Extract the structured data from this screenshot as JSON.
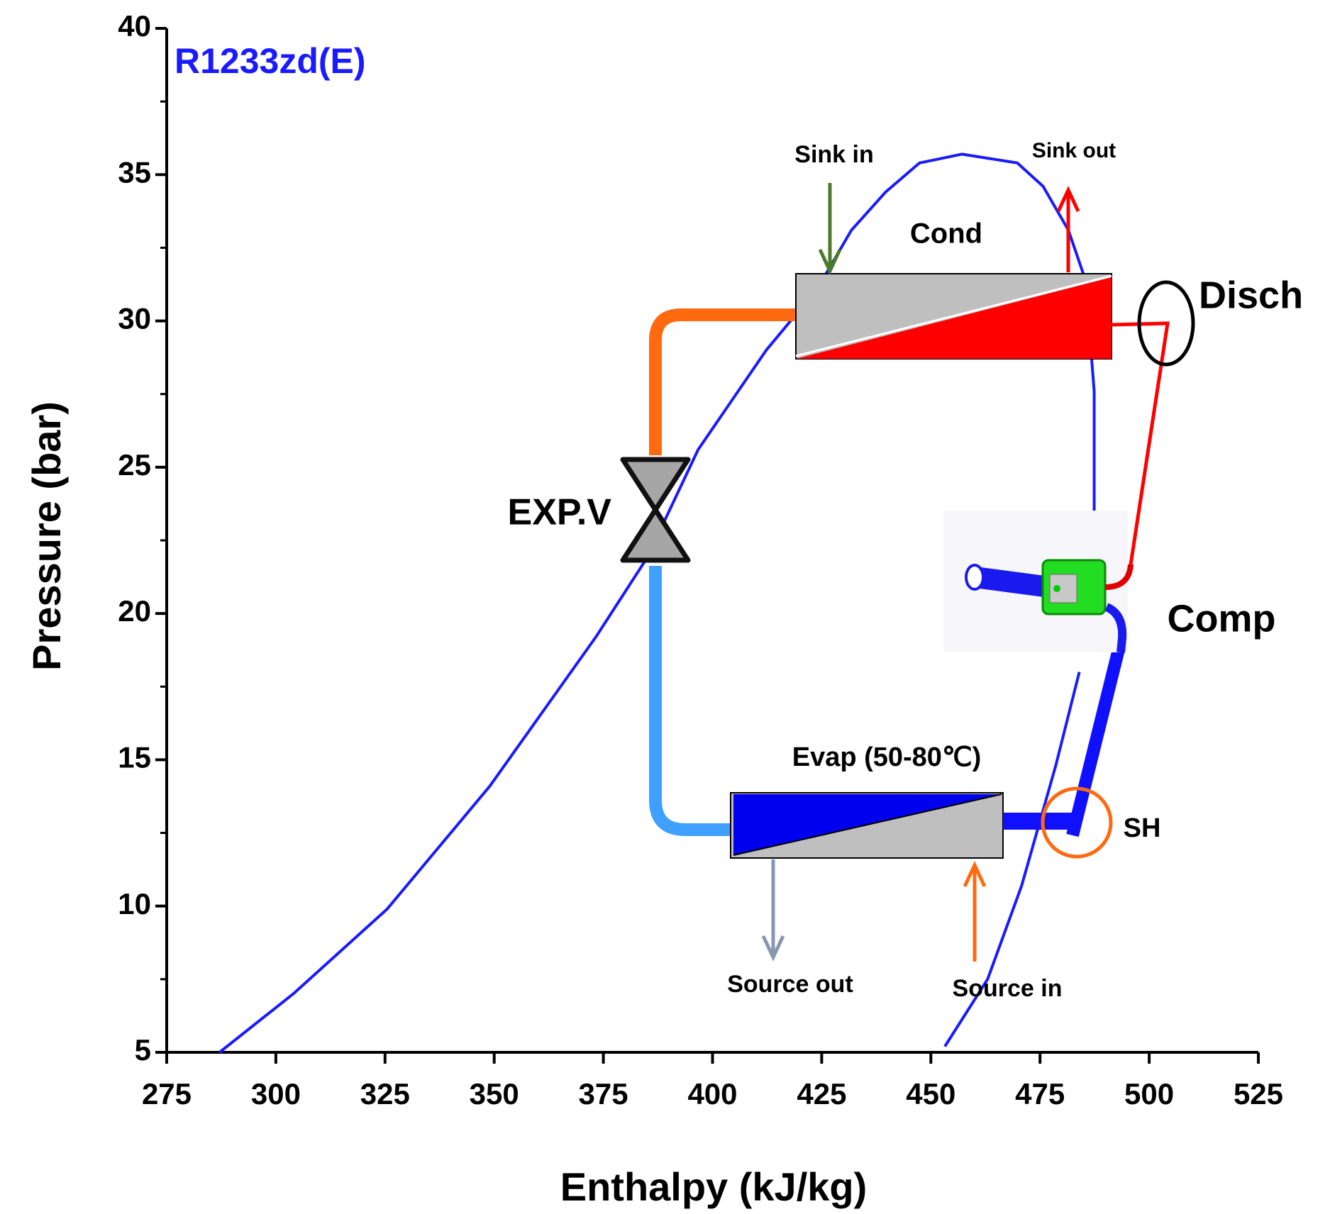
{
  "chart_data": {
    "type": "line",
    "x_label": "Enthalpy (kJ/kg)",
    "y_label": "Pressure (bar)",
    "xlim": [
      275,
      525
    ],
    "xticks": [
      275,
      300,
      325,
      350,
      375,
      400,
      425,
      450,
      475,
      500,
      525
    ],
    "ylim": [
      5,
      40
    ],
    "yticks": [
      5,
      10,
      15,
      20,
      25,
      30,
      35,
      40
    ],
    "series": [
      {
        "name": "R1233zd(E)",
        "color": "#1a1aff",
        "x": [
          287.1,
          304,
          325.5,
          349,
          373.3,
          385,
          396.7,
          412.3,
          424,
          431.8,
          439.6,
          447.4,
          457.1,
          469.8,
          475.7,
          481.5,
          485.4,
          487.4,
          487.4,
          486,
          484,
          478.6,
          470.8,
          463,
          453.2
        ],
        "values": [
          5,
          7,
          9.9,
          14.1,
          19.2,
          21.9,
          25.6,
          29,
          31.1,
          33.1,
          34.4,
          35.4,
          35.7,
          35.4,
          34.6,
          33.1,
          31.4,
          27.6,
          23.5,
          null,
          18,
          14.8,
          10.7,
          7.5,
          5.2
        ]
      }
    ],
    "annotations": [
      "Sink in",
      "Sink out",
      "Cond",
      "Disch",
      "EXP.V",
      "Comp",
      "Evap (50-80℃)",
      "SH",
      "Source out",
      "Source in"
    ]
  }
}
